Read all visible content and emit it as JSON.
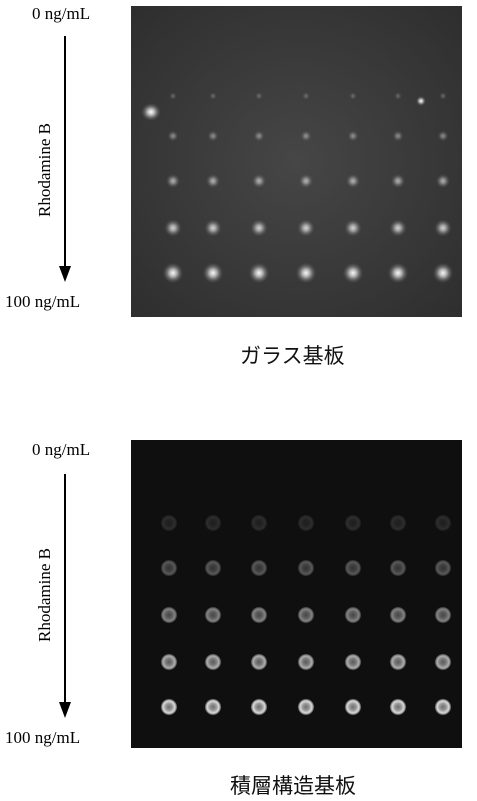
{
  "panel1": {
    "label_top": "0 ng/mL",
    "label_bottom": "100 ng/mL",
    "axis_label": "Rhodamine B",
    "caption": "ガラス基板"
  },
  "panel2": {
    "label_top": "0 ng/mL",
    "label_bottom": "100 ng/mL",
    "axis_label": "Rhodamine B",
    "caption": "積層構造基板"
  },
  "grid": {
    "rows": 5,
    "cols": 7
  },
  "colors": {
    "panel1_bg": "#3a3a3a",
    "panel2_bg": "#0f0f0f"
  }
}
